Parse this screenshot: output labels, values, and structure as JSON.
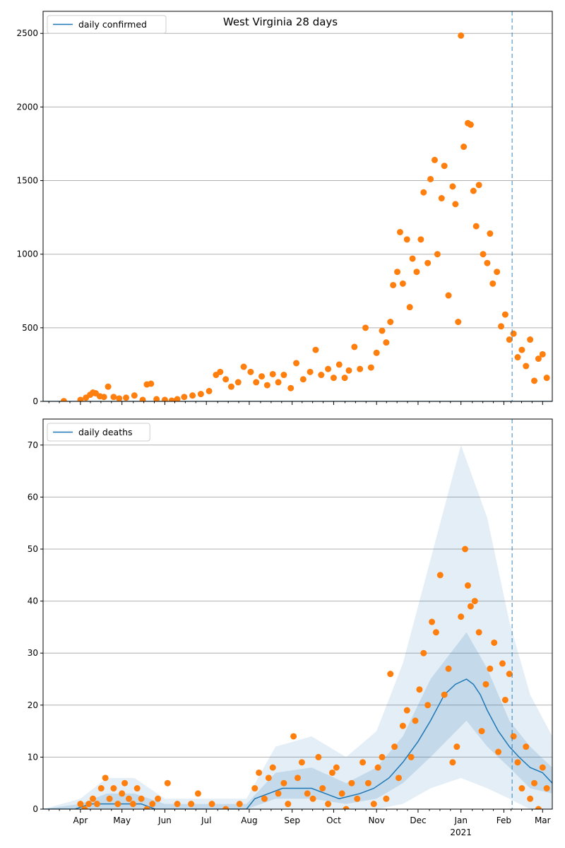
{
  "title": "West Virginia 28 days",
  "colors": {
    "model_line": "#1f77b4",
    "observed_points": "#ff7f0e",
    "band": "#1f77b4",
    "grid": "#b0b0b0",
    "forecast_marker": "#1f77b4"
  },
  "x_axis": {
    "ticks": [
      {
        "label": "Apr",
        "date": "2020-04-01"
      },
      {
        "label": "May",
        "date": "2020-05-01"
      },
      {
        "label": "Jun",
        "date": "2020-06-01"
      },
      {
        "label": "Jul",
        "date": "2020-07-01"
      },
      {
        "label": "Aug",
        "date": "2020-08-01"
      },
      {
        "label": "Sep",
        "date": "2020-09-01"
      },
      {
        "label": "Oct",
        "date": "2020-10-01"
      },
      {
        "label": "Nov",
        "date": "2020-11-01"
      },
      {
        "label": "Dec",
        "date": "2020-12-01"
      },
      {
        "label": "Jan",
        "date": "2021-01-01"
      },
      {
        "label": "Feb",
        "date": "2021-02-01"
      },
      {
        "label": "Mar",
        "date": "2021-03-01"
      }
    ],
    "year_label": "2021",
    "range": [
      "2020-03-05",
      "2021-03-08"
    ],
    "forecast_date": "2021-02-07"
  },
  "chart_data": [
    {
      "type": "scatter",
      "legend": "daily confirmed",
      "legend_position": "upper-left",
      "grid": "y",
      "ylim": [
        0,
        2650
      ],
      "yticks": [
        0,
        500,
        1000,
        1500,
        2000,
        2500
      ],
      "model_line": [
        [
          "2020-03-05",
          0
        ],
        [
          "2021-03-08",
          0
        ]
      ],
      "observed": [
        [
          "2020-03-20",
          2
        ],
        [
          "2020-04-01",
          10
        ],
        [
          "2020-04-05",
          25
        ],
        [
          "2020-04-08",
          45
        ],
        [
          "2020-04-10",
          60
        ],
        [
          "2020-04-12",
          55
        ],
        [
          "2020-04-15",
          35
        ],
        [
          "2020-04-18",
          30
        ],
        [
          "2020-04-21",
          100
        ],
        [
          "2020-04-25",
          30
        ],
        [
          "2020-04-29",
          20
        ],
        [
          "2020-05-04",
          25
        ],
        [
          "2020-05-10",
          40
        ],
        [
          "2020-05-16",
          10
        ],
        [
          "2020-05-19",
          115
        ],
        [
          "2020-05-22",
          120
        ],
        [
          "2020-05-26",
          15
        ],
        [
          "2020-06-01",
          10
        ],
        [
          "2020-06-06",
          5
        ],
        [
          "2020-06-10",
          15
        ],
        [
          "2020-06-15",
          30
        ],
        [
          "2020-06-21",
          40
        ],
        [
          "2020-06-27",
          50
        ],
        [
          "2020-07-03",
          70
        ],
        [
          "2020-07-08",
          180
        ],
        [
          "2020-07-11",
          200
        ],
        [
          "2020-07-15",
          150
        ],
        [
          "2020-07-19",
          100
        ],
        [
          "2020-07-24",
          130
        ],
        [
          "2020-07-28",
          235
        ],
        [
          "2020-08-02",
          200
        ],
        [
          "2020-08-06",
          130
        ],
        [
          "2020-08-10",
          170
        ],
        [
          "2020-08-14",
          110
        ],
        [
          "2020-08-18",
          185
        ],
        [
          "2020-08-22",
          130
        ],
        [
          "2020-08-26",
          180
        ],
        [
          "2020-08-31",
          90
        ],
        [
          "2020-09-04",
          260
        ],
        [
          "2020-09-09",
          150
        ],
        [
          "2020-09-14",
          200
        ],
        [
          "2020-09-18",
          350
        ],
        [
          "2020-09-22",
          180
        ],
        [
          "2020-09-27",
          220
        ],
        [
          "2020-10-01",
          160
        ],
        [
          "2020-10-05",
          250
        ],
        [
          "2020-10-09",
          160
        ],
        [
          "2020-10-12",
          210
        ],
        [
          "2020-10-16",
          370
        ],
        [
          "2020-10-20",
          220
        ],
        [
          "2020-10-24",
          500
        ],
        [
          "2020-10-28",
          230
        ],
        [
          "2020-11-01",
          330
        ],
        [
          "2020-11-05",
          480
        ],
        [
          "2020-11-08",
          400
        ],
        [
          "2020-11-11",
          540
        ],
        [
          "2020-11-13",
          790
        ],
        [
          "2020-11-16",
          880
        ],
        [
          "2020-11-18",
          1150
        ],
        [
          "2020-11-20",
          800
        ],
        [
          "2020-11-23",
          1100
        ],
        [
          "2020-11-25",
          640
        ],
        [
          "2020-11-27",
          970
        ],
        [
          "2020-11-30",
          880
        ],
        [
          "2020-12-03",
          1100
        ],
        [
          "2020-12-05",
          1420
        ],
        [
          "2020-12-08",
          940
        ],
        [
          "2020-12-10",
          1510
        ],
        [
          "2020-12-13",
          1640
        ],
        [
          "2020-12-15",
          1000
        ],
        [
          "2020-12-18",
          1380
        ],
        [
          "2020-12-20",
          1600
        ],
        [
          "2020-12-23",
          720
        ],
        [
          "2020-12-26",
          1460
        ],
        [
          "2020-12-28",
          1340
        ],
        [
          "2020-12-30",
          540
        ],
        [
          "2021-01-01",
          2485
        ],
        [
          "2021-01-03",
          1730
        ],
        [
          "2021-01-06",
          1890
        ],
        [
          "2021-01-08",
          1880
        ],
        [
          "2021-01-10",
          1430
        ],
        [
          "2021-01-12",
          1190
        ],
        [
          "2021-01-14",
          1470
        ],
        [
          "2021-01-17",
          1000
        ],
        [
          "2021-01-20",
          940
        ],
        [
          "2021-01-22",
          1140
        ],
        [
          "2021-01-24",
          800
        ],
        [
          "2021-01-27",
          880
        ],
        [
          "2021-01-30",
          510
        ],
        [
          "2021-02-02",
          590
        ],
        [
          "2021-02-05",
          420
        ],
        [
          "2021-02-08",
          460
        ],
        [
          "2021-02-11",
          300
        ],
        [
          "2021-02-14",
          350
        ],
        [
          "2021-02-17",
          240
        ],
        [
          "2021-02-20",
          420
        ],
        [
          "2021-02-23",
          140
        ],
        [
          "2021-02-26",
          290
        ],
        [
          "2021-03-01",
          320
        ],
        [
          "2021-03-04",
          160
        ]
      ]
    },
    {
      "type": "scatter",
      "legend": "daily deaths",
      "legend_position": "upper-left",
      "grid": "y",
      "ylim": [
        0,
        75
      ],
      "yticks": [
        0,
        10,
        20,
        30,
        40,
        50,
        60,
        70
      ],
      "model_line": [
        [
          "2020-03-05",
          0
        ],
        [
          "2020-03-28",
          0
        ],
        [
          "2020-04-08",
          1
        ],
        [
          "2020-05-01",
          1
        ],
        [
          "2020-05-15",
          1
        ],
        [
          "2020-05-25",
          0
        ],
        [
          "2020-07-30",
          0
        ],
        [
          "2020-08-05",
          2
        ],
        [
          "2020-08-25",
          4
        ],
        [
          "2020-09-15",
          4
        ],
        [
          "2020-09-25",
          3
        ],
        [
          "2020-10-05",
          2
        ],
        [
          "2020-10-20",
          3
        ],
        [
          "2020-10-30",
          4
        ],
        [
          "2020-11-10",
          6
        ],
        [
          "2020-11-20",
          9
        ],
        [
          "2020-12-01",
          13
        ],
        [
          "2020-12-10",
          17
        ],
        [
          "2020-12-20",
          22
        ],
        [
          "2020-12-28",
          24
        ],
        [
          "2021-01-05",
          25
        ],
        [
          "2021-01-10",
          24
        ],
        [
          "2021-01-15",
          22
        ],
        [
          "2021-01-20",
          19
        ],
        [
          "2021-01-28",
          15
        ],
        [
          "2021-02-05",
          12
        ],
        [
          "2021-02-12",
          10
        ],
        [
          "2021-02-20",
          8
        ],
        [
          "2021-03-01",
          7
        ],
        [
          "2021-03-08",
          5
        ]
      ],
      "band_inner": [
        [
          "2020-03-05",
          0,
          0
        ],
        [
          "2020-04-01",
          0,
          1
        ],
        [
          "2020-04-20",
          0,
          3
        ],
        [
          "2020-05-10",
          0,
          3
        ],
        [
          "2020-06-01",
          0,
          1
        ],
        [
          "2020-07-30",
          0,
          1
        ],
        [
          "2020-08-20",
          2,
          7
        ],
        [
          "2020-09-15",
          2,
          8
        ],
        [
          "2020-10-10",
          1,
          5
        ],
        [
          "2020-11-01",
          2,
          8
        ],
        [
          "2020-11-20",
          5,
          14
        ],
        [
          "2020-12-10",
          10,
          25
        ],
        [
          "2021-01-05",
          17,
          34
        ],
        [
          "2021-01-20",
          12,
          27
        ],
        [
          "2021-02-05",
          8,
          17
        ],
        [
          "2021-02-20",
          4,
          12
        ],
        [
          "2021-03-08",
          3,
          8
        ]
      ],
      "band_outer": [
        [
          "2020-03-05",
          0,
          0
        ],
        [
          "2020-04-01",
          0,
          2
        ],
        [
          "2020-04-20",
          0,
          6
        ],
        [
          "2020-05-10",
          0,
          6
        ],
        [
          "2020-06-01",
          0,
          2
        ],
        [
          "2020-07-30",
          0,
          2
        ],
        [
          "2020-08-20",
          0,
          12
        ],
        [
          "2020-09-15",
          0,
          14
        ],
        [
          "2020-10-10",
          0,
          10
        ],
        [
          "2020-11-01",
          0,
          15
        ],
        [
          "2020-11-20",
          1,
          28
        ],
        [
          "2020-12-10",
          4,
          48
        ],
        [
          "2021-01-01",
          6,
          70
        ],
        [
          "2021-01-20",
          4,
          56
        ],
        [
          "2021-02-05",
          2,
          36
        ],
        [
          "2021-02-20",
          0,
          22
        ],
        [
          "2021-03-08",
          0,
          14
        ]
      ],
      "observed": [
        [
          "2020-04-01",
          1
        ],
        [
          "2020-04-04",
          0
        ],
        [
          "2020-04-07",
          1
        ],
        [
          "2020-04-10",
          2
        ],
        [
          "2020-04-13",
          1
        ],
        [
          "2020-04-16",
          4
        ],
        [
          "2020-04-19",
          6
        ],
        [
          "2020-04-22",
          2
        ],
        [
          "2020-04-25",
          4
        ],
        [
          "2020-04-28",
          1
        ],
        [
          "2020-05-01",
          3
        ],
        [
          "2020-05-03",
          5
        ],
        [
          "2020-05-06",
          2
        ],
        [
          "2020-05-09",
          1
        ],
        [
          "2020-05-12",
          4
        ],
        [
          "2020-05-15",
          2
        ],
        [
          "2020-05-19",
          0
        ],
        [
          "2020-05-23",
          1
        ],
        [
          "2020-05-27",
          2
        ],
        [
          "2020-06-03",
          5
        ],
        [
          "2020-06-10",
          1
        ],
        [
          "2020-06-20",
          1
        ],
        [
          "2020-06-25",
          3
        ],
        [
          "2020-07-05",
          1
        ],
        [
          "2020-07-15",
          0
        ],
        [
          "2020-07-25",
          1
        ],
        [
          "2020-08-05",
          4
        ],
        [
          "2020-08-08",
          7
        ],
        [
          "2020-08-12",
          2
        ],
        [
          "2020-08-15",
          6
        ],
        [
          "2020-08-18",
          8
        ],
        [
          "2020-08-22",
          3
        ],
        [
          "2020-08-26",
          5
        ],
        [
          "2020-08-29",
          1
        ],
        [
          "2020-09-02",
          14
        ],
        [
          "2020-09-05",
          6
        ],
        [
          "2020-09-08",
          9
        ],
        [
          "2020-09-12",
          3
        ],
        [
          "2020-09-16",
          2
        ],
        [
          "2020-09-20",
          10
        ],
        [
          "2020-09-23",
          4
        ],
        [
          "2020-09-27",
          1
        ],
        [
          "2020-09-30",
          7
        ],
        [
          "2020-10-03",
          8
        ],
        [
          "2020-10-07",
          3
        ],
        [
          "2020-10-10",
          0
        ],
        [
          "2020-10-14",
          5
        ],
        [
          "2020-10-18",
          2
        ],
        [
          "2020-10-22",
          9
        ],
        [
          "2020-10-26",
          5
        ],
        [
          "2020-10-30",
          1
        ],
        [
          "2020-11-02",
          8
        ],
        [
          "2020-11-05",
          10
        ],
        [
          "2020-11-08",
          2
        ],
        [
          "2020-11-11",
          26
        ],
        [
          "2020-11-14",
          12
        ],
        [
          "2020-11-17",
          6
        ],
        [
          "2020-11-20",
          16
        ],
        [
          "2020-11-23",
          19
        ],
        [
          "2020-11-26",
          10
        ],
        [
          "2020-11-29",
          17
        ],
        [
          "2020-12-02",
          23
        ],
        [
          "2020-12-05",
          30
        ],
        [
          "2020-12-08",
          20
        ],
        [
          "2020-12-11",
          36
        ],
        [
          "2020-12-14",
          34
        ],
        [
          "2020-12-17",
          45
        ],
        [
          "2020-12-20",
          22
        ],
        [
          "2020-12-23",
          27
        ],
        [
          "2020-12-26",
          9
        ],
        [
          "2020-12-29",
          12
        ],
        [
          "2021-01-01",
          37
        ],
        [
          "2021-01-04",
          50
        ],
        [
          "2021-01-06",
          43
        ],
        [
          "2021-01-08",
          39
        ],
        [
          "2021-01-11",
          40
        ],
        [
          "2021-01-14",
          34
        ],
        [
          "2021-01-16",
          15
        ],
        [
          "2021-01-19",
          24
        ],
        [
          "2021-01-22",
          27
        ],
        [
          "2021-01-25",
          32
        ],
        [
          "2021-01-28",
          11
        ],
        [
          "2021-01-31",
          28
        ],
        [
          "2021-02-02",
          21
        ],
        [
          "2021-02-05",
          26
        ],
        [
          "2021-02-08",
          14
        ],
        [
          "2021-02-11",
          9
        ],
        [
          "2021-02-14",
          4
        ],
        [
          "2021-02-17",
          12
        ],
        [
          "2021-02-20",
          2
        ],
        [
          "2021-02-23",
          5
        ],
        [
          "2021-02-26",
          0
        ],
        [
          "2021-03-01",
          8
        ],
        [
          "2021-03-04",
          4
        ]
      ]
    }
  ]
}
